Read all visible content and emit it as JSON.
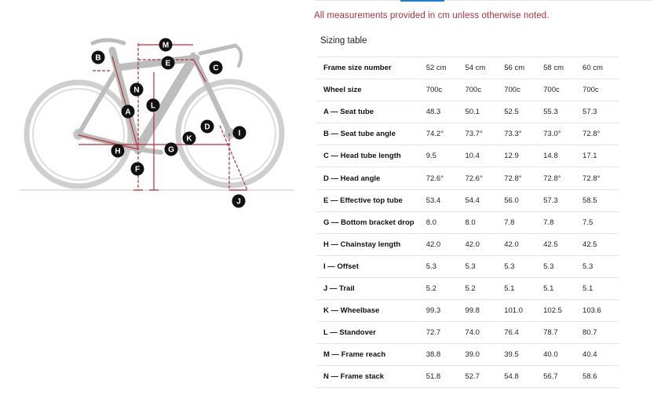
{
  "note": "All measurements provided in cm unless otherwise noted.",
  "table_title": "Sizing table",
  "rows": [
    {
      "label": "Frame size number",
      "values": [
        "52 cm",
        "54 cm",
        "56 cm",
        "58 cm",
        "60 cm"
      ]
    },
    {
      "label": "Wheel size",
      "values": [
        "700c",
        "700c",
        "700c",
        "700c",
        "700c"
      ]
    },
    {
      "label": "A — Seat tube",
      "values": [
        "48.3",
        "50.1",
        "52.5",
        "55.3",
        "57.3"
      ]
    },
    {
      "label": "B — Seat tube angle",
      "values": [
        "74.2°",
        "73.7°",
        "73.3°",
        "73.0°",
        "72.8°"
      ]
    },
    {
      "label": "C — Head tube length",
      "values": [
        "9.5",
        "10.4",
        "12.9",
        "14.8",
        "17.1"
      ]
    },
    {
      "label": "D — Head angle",
      "values": [
        "72.6°",
        "72.6°",
        "72.8°",
        "72.8°",
        "72.8°"
      ]
    },
    {
      "label": "E — Effective top tube",
      "values": [
        "53.4",
        "54.4",
        "56.0",
        "57.3",
        "58.5"
      ]
    },
    {
      "label": "G — Bottom bracket drop",
      "values": [
        "8.0",
        "8.0",
        "7.8",
        "7.8",
        "7.5"
      ]
    },
    {
      "label": "H — Chainstay length",
      "values": [
        "42.0",
        "42.0",
        "42.0",
        "42.5",
        "42.5"
      ]
    },
    {
      "label": "I — Offset",
      "values": [
        "5.3",
        "5.3",
        "5.3",
        "5.3",
        "5.3"
      ]
    },
    {
      "label": "J — Trail",
      "values": [
        "5.2",
        "5.2",
        "5.1",
        "5.1",
        "5.1"
      ]
    },
    {
      "label": "K — Wheelbase",
      "values": [
        "99.3",
        "99.8",
        "101.0",
        "102.5",
        "103.6"
      ]
    },
    {
      "label": "L — Standover",
      "values": [
        "72.7",
        "74.0",
        "76.4",
        "78.7",
        "80.7"
      ]
    },
    {
      "label": "M — Frame reach",
      "values": [
        "38.8",
        "39.0",
        "39.5",
        "40.0",
        "40.4"
      ]
    },
    {
      "label": "N — Frame stack",
      "values": [
        "51.8",
        "52.7",
        "54.8",
        "56.7",
        "58.6"
      ]
    }
  ],
  "diagram": {
    "markers": [
      "A",
      "B",
      "C",
      "D",
      "E",
      "F",
      "G",
      "H",
      "I",
      "J",
      "K",
      "L",
      "M",
      "N"
    ]
  }
}
